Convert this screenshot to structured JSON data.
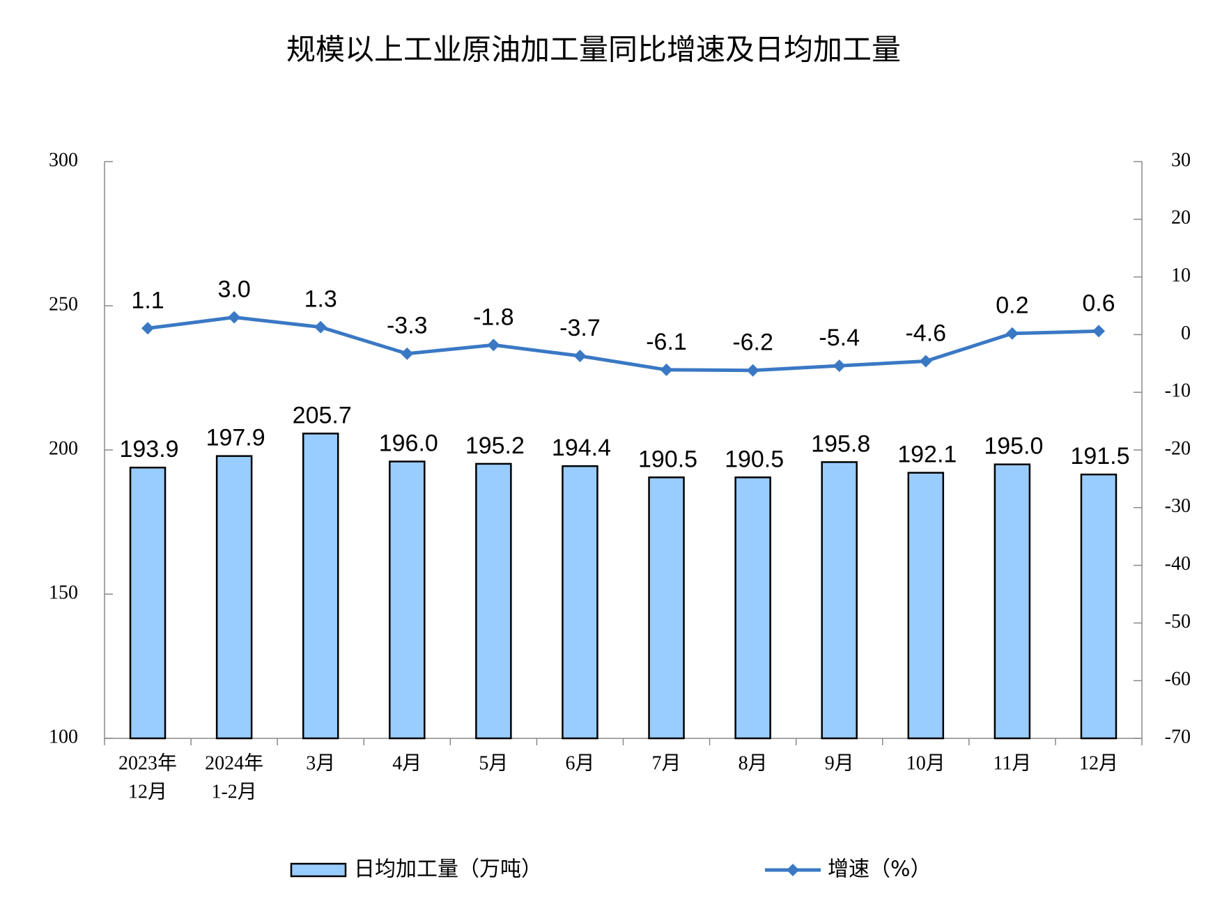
{
  "chart_data": {
    "type": "bar-line",
    "title": "规模以上工业原油加工量同比增速及日均加工量",
    "categories": [
      [
        "2023年",
        "12月"
      ],
      [
        "2024年",
        "1-2月"
      ],
      [
        "3月"
      ],
      [
        "4月"
      ],
      [
        "5月"
      ],
      [
        "6月"
      ],
      [
        "7月"
      ],
      [
        "8月"
      ],
      [
        "9月"
      ],
      [
        "10月"
      ],
      [
        "11月"
      ],
      [
        "12月"
      ]
    ],
    "series": [
      {
        "name": "日均加工量（万吨）",
        "type": "bar",
        "color": "#99ccff",
        "axis": "y",
        "values": [
          193.9,
          197.9,
          205.7,
          196,
          195.2,
          194.4,
          190.5,
          190.5,
          195.8,
          192.1,
          195,
          191.5
        ],
        "value_labels": [
          "193.9",
          "197.9",
          "205.7",
          "196.0",
          "195.2",
          "194.4",
          "190.5",
          "190.5",
          "195.8",
          "192.1",
          "195.0",
          "191.5"
        ]
      },
      {
        "name": "增速（%）",
        "type": "line",
        "color": "#3a78c4",
        "axis": "y2",
        "values": [
          1.1,
          3,
          1.3,
          -3.3,
          -1.8,
          -3.7,
          -6.1,
          -6.2,
          -5.4,
          -4.6,
          0.2,
          0.6
        ],
        "value_labels": [
          "1.1",
          "3.0",
          "1.3",
          "-3.3",
          "-1.8",
          "-3.7",
          "-6.1",
          "-6.2",
          "-5.4",
          "-4.6",
          "0.2",
          "0.6"
        ]
      }
    ],
    "ylim": [
      100,
      300
    ],
    "yticks": [
      100,
      150,
      200,
      250,
      300
    ],
    "y2lim": [
      -70,
      30
    ],
    "y2ticks": [
      -70,
      -60,
      -50,
      -40,
      -30,
      -20,
      -10,
      0,
      10,
      20,
      30
    ]
  }
}
